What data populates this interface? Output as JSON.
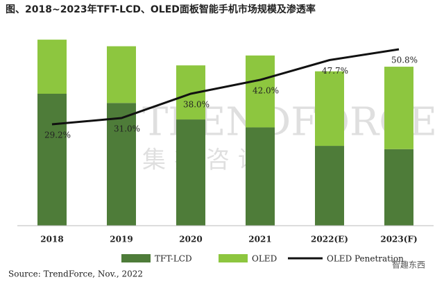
{
  "chart_data": {
    "type": "bar_line",
    "title": "图、2018~2023年TFT-LCD、OLED面板智能手机市场规模及渗透率",
    "categories": [
      "2018",
      "2019",
      "2020",
      "2021",
      "2022(E)",
      "2023(F)"
    ],
    "series": [
      {
        "name": "TFT-LCD",
        "color": "#4e7c39",
        "values": [
          200,
          186,
          161,
          149,
          121,
          116
        ]
      },
      {
        "name": "OLED",
        "color": "#8dc63f",
        "values": [
          82,
          86,
          82,
          109,
          113,
          125
        ]
      },
      {
        "name": "OLED Penetration",
        "color": "#111111",
        "axis": "y2",
        "values": [
          29.2,
          31.0,
          38.0,
          42.0,
          47.7,
          50.8
        ],
        "value_labels": [
          "29.2%",
          "31.0%",
          "38.0%",
          "42.0%",
          "47.7%",
          "50.8%"
        ]
      }
    ],
    "ylim": [
      0,
      300
    ],
    "y2lim": [
      0,
      57
    ],
    "source": "Source: TrendForce, Nov., 2022",
    "watermark": "TRENDFORCE",
    "watermark_sub": "集邦咨询",
    "logo": "智趣东西"
  }
}
